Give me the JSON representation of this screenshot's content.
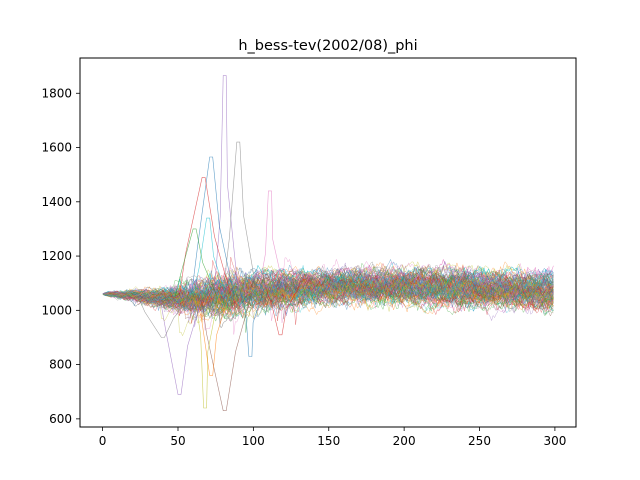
{
  "chart_data": {
    "type": "line",
    "title": "h_bess-tev(2002/08)_phi",
    "xlabel": "",
    "ylabel": "",
    "xlim": [
      -15,
      314
    ],
    "ylim": [
      570,
      1930
    ],
    "x_ticks": [
      0,
      50,
      100,
      150,
      200,
      250,
      300
    ],
    "y_ticks": [
      600,
      800,
      1000,
      1200,
      1400,
      1600,
      1800
    ],
    "grid": false,
    "legend": false,
    "x_range": [
      0,
      299
    ],
    "series_count": 150,
    "start_value": 1060,
    "envelope_center": [
      [
        0,
        1060
      ],
      [
        20,
        1055
      ],
      [
        40,
        1045
      ],
      [
        60,
        1050
      ],
      [
        80,
        1065
      ],
      [
        100,
        1080
      ],
      [
        150,
        1095
      ],
      [
        200,
        1095
      ],
      [
        250,
        1085
      ],
      [
        299,
        1075
      ]
    ],
    "envelope_halfwidth": [
      [
        0,
        0
      ],
      [
        20,
        15
      ],
      [
        40,
        30
      ],
      [
        60,
        55
      ],
      [
        80,
        65
      ],
      [
        100,
        55
      ],
      [
        150,
        55
      ],
      [
        200,
        60
      ],
      [
        250,
        60
      ],
      [
        299,
        60
      ]
    ],
    "notable_spikes": [
      {
        "x": 81,
        "y": 1865
      },
      {
        "x": 90,
        "y": 1620
      },
      {
        "x": 72,
        "y": 1565
      },
      {
        "x": 67,
        "y": 1490
      },
      {
        "x": 111,
        "y": 1440
      },
      {
        "x": 70,
        "y": 1340
      },
      {
        "x": 61,
        "y": 1300
      }
    ],
    "notable_dips": [
      {
        "x": 81,
        "y": 630
      },
      {
        "x": 68,
        "y": 640
      },
      {
        "x": 72,
        "y": 760
      },
      {
        "x": 51,
        "y": 690
      },
      {
        "x": 40,
        "y": 900
      },
      {
        "x": 98,
        "y": 830
      },
      {
        "x": 118,
        "y": 910
      }
    ],
    "colors": [
      "#1f77b4",
      "#ff7f0e",
      "#2ca02c",
      "#d62728",
      "#9467bd",
      "#8c564b",
      "#e377c2",
      "#7f7f7f",
      "#bcbd22",
      "#17becf"
    ]
  }
}
